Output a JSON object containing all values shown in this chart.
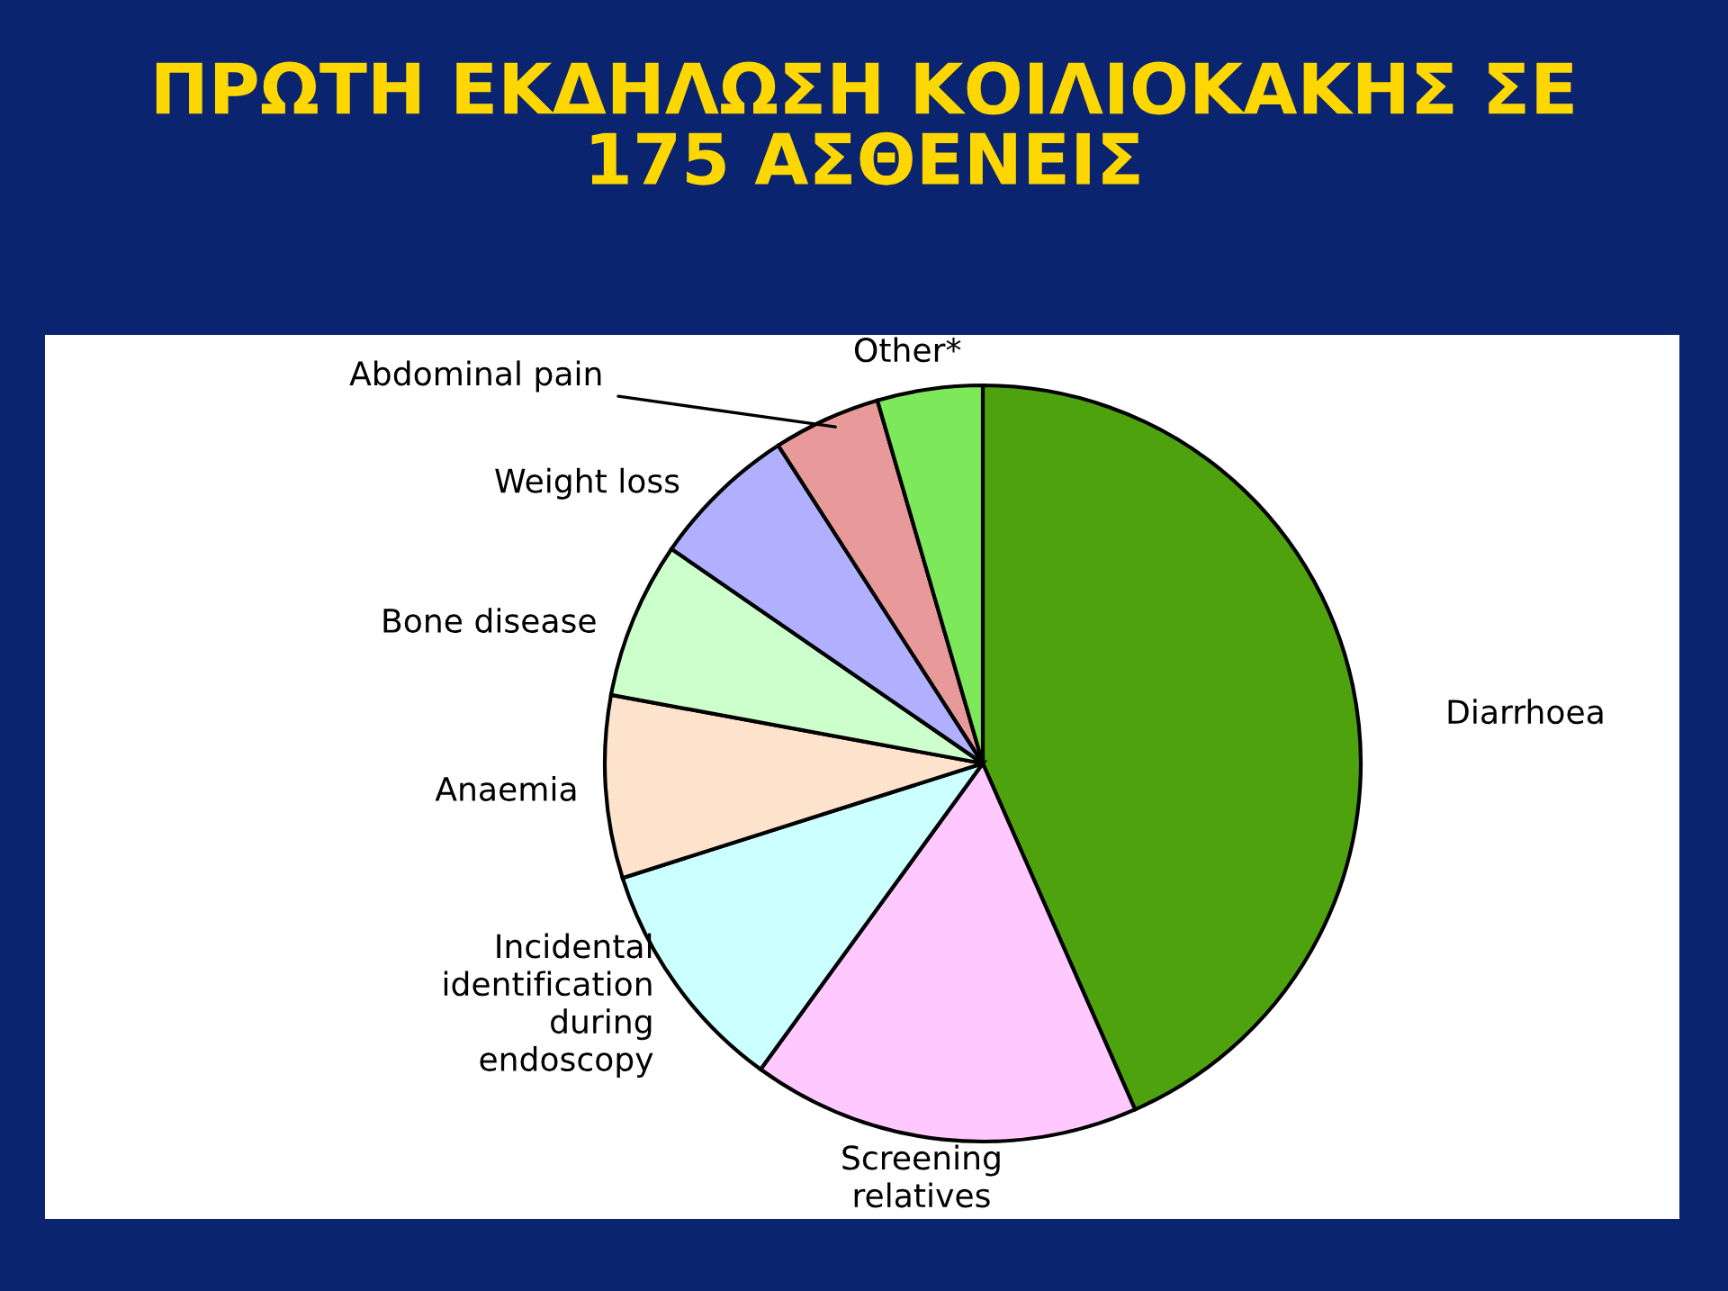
{
  "chart_data": {
    "type": "pie",
    "title": "ΠΡΩΤΗ ΕΚΔΗΛΩΣΗ ΚΟΙΛΙΟΚΑΚΗΣ ΣΕ\n175 ΑΣΘΕΝΕΙΣ",
    "categories": [
      "Diarrhoea",
      "Screening\nrelatives",
      "Incidental\nidentification\nduring\nendoscopy",
      "Anaemia",
      "Bone disease",
      "Weight loss",
      "Abdominal pain",
      "Other*"
    ],
    "values": [
      43.4,
      16.6,
      10.1,
      7.8,
      6.7,
      6.3,
      4.6,
      4.5
    ],
    "colors": [
      "#4ea20e",
      "#ffc8ff",
      "#ccffff",
      "#fde3cc",
      "#ccffcc",
      "#b0b0ff",
      "#e89a9a",
      "#7ce85a"
    ],
    "legend": false
  }
}
